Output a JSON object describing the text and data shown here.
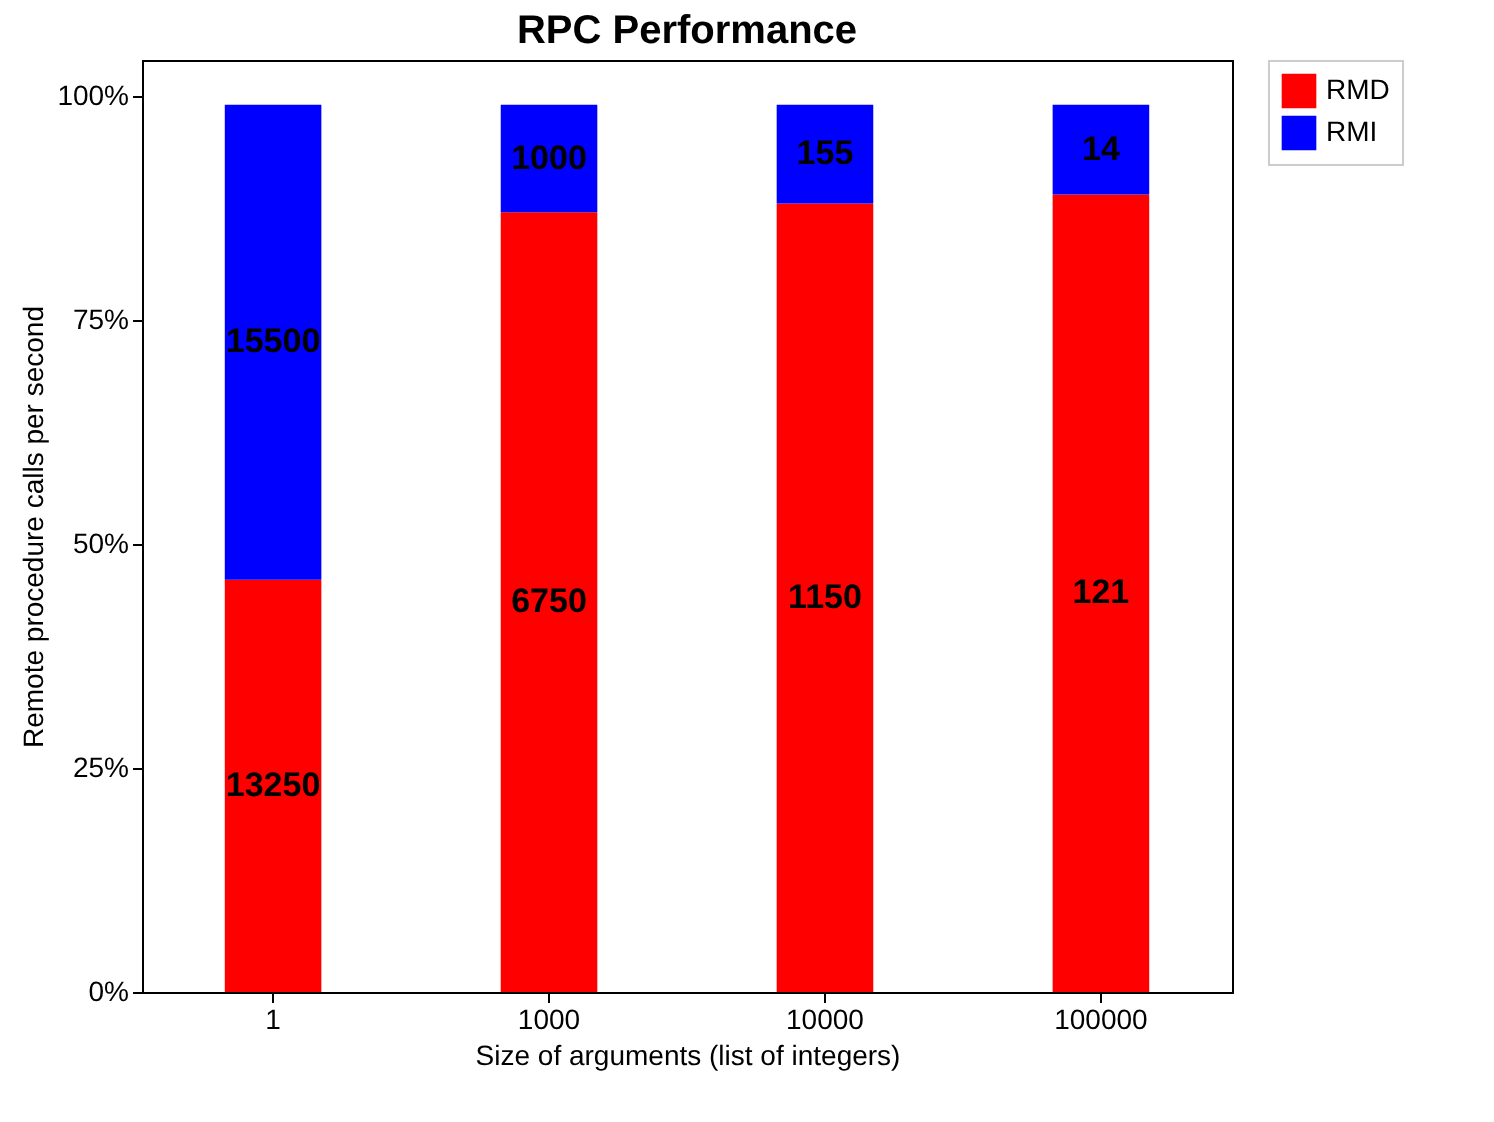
{
  "chart_data": {
    "type": "bar",
    "title": "RPC Performance",
    "xlabel": "Size of arguments (list of integers)",
    "ylabel": "Remote procedure calls per second",
    "categories": [
      "1",
      "1000",
      "10000",
      "100000"
    ],
    "stacked": true,
    "series": [
      {
        "name": "RMD",
        "color": "#ff0000",
        "values": [
          46,
          87,
          88,
          89
        ]
      },
      {
        "name": "RMI",
        "color": "#0000ff",
        "values": [
          53,
          12,
          11,
          10
        ]
      }
    ],
    "annotations": [
      "13250",
      "6750",
      "1150",
      "121",
      "15500",
      "1000",
      "155",
      "14"
    ],
    "ylim": [
      0,
      104
    ],
    "yticks": [
      {
        "value": 0,
        "label": "0%"
      },
      {
        "value": 25,
        "label": "25%"
      },
      {
        "value": 50,
        "label": "50%"
      },
      {
        "value": 75,
        "label": "75%"
      },
      {
        "value": 100,
        "label": "100%"
      }
    ],
    "grid": false,
    "legend": "top right"
  }
}
